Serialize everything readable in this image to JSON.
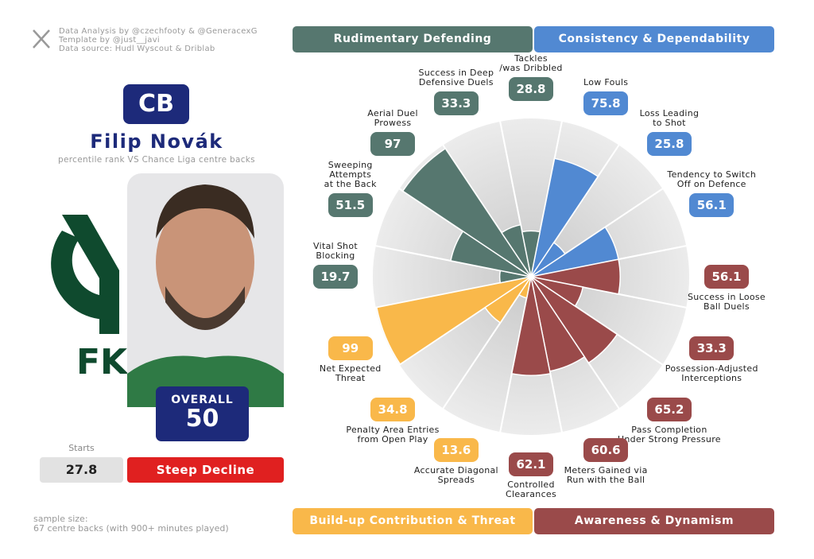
{
  "credits": [
    "Data Analysis by @czechfooty & @GeneracexG",
    "Template by @just__javi",
    "Data source: Hudl Wyscout & Driblab"
  ],
  "player": {
    "position": "CB",
    "name": "Filip Novák",
    "subtitle": "percentile rank VS Chance Liga centre backs",
    "logo_text": "FK",
    "overall_label": "OVERALL",
    "overall": 50,
    "starts_label": "Starts",
    "starts": 27.8,
    "trend": "Steep Decline"
  },
  "footer": "sample size:\n67 centre backs (with 900+ minutes played)",
  "chart_data": {
    "type": "pizza",
    "rlim": [
      0,
      100
    ],
    "series": [
      {
        "name": "Consistency & Dependability",
        "color": "#5189d2",
        "categories": [
          "Low Fouls",
          "Loss Leading\nto Shot",
          "Tendency to Switch\nOff on Defence"
        ],
        "values": [
          75.8,
          25.8,
          56.1
        ]
      },
      {
        "name": "Awareness & Dynamism",
        "color": "#9a4a4a",
        "categories": [
          "Success in Loose\nBall Duels",
          "Possession-Adjusted\nInterceptions",
          "Pass Completion\nUnder Strong Pressure",
          "Meters Gained via\nRun with the Ball",
          "Controlled\nClearances"
        ],
        "values": [
          56.1,
          33.3,
          65.2,
          60.6,
          62.1
        ]
      },
      {
        "name": "Build-up Contribution & Threat",
        "color": "#f9b84a",
        "categories": [
          "Accurate Diagonal\nSpreads",
          "Penalty Area Entries\nfrom Open Play",
          "Net Expected\nThreat"
        ],
        "values": [
          13.6,
          34.8,
          99
        ]
      },
      {
        "name": "Rudimentary Defending",
        "color": "#56776f",
        "categories": [
          "Vital Shot\nBlocking",
          "Sweeping\nAttempts\nat the Back",
          "Aerial Duel\nProwess",
          "Success in Deep\nDefensive Duels",
          "Tackles\n/was Dribbled"
        ],
        "values": [
          19.7,
          51.5,
          97,
          33.3,
          28.8
        ]
      }
    ]
  }
}
